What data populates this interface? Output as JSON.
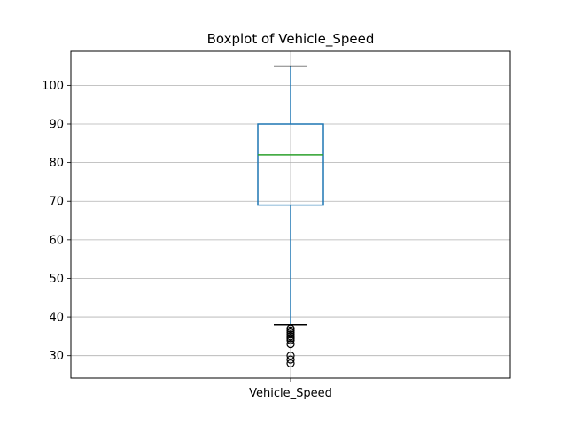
{
  "chart_data": {
    "type": "boxplot",
    "title": "Boxplot of Vehicle_Speed",
    "xlabel": "",
    "ylabel": "",
    "categories": [
      "Vehicle_Speed"
    ],
    "ylim": [
      24.2,
      108.8
    ],
    "yticks": [
      30,
      40,
      50,
      60,
      70,
      80,
      90,
      100
    ],
    "grid": true,
    "box": {
      "whisker_low": 38,
      "q1": 69,
      "median": 82,
      "q3": 90,
      "whisker_high": 105
    },
    "outliers": [
      37,
      36.5,
      36,
      35.5,
      35,
      34.5,
      34,
      33,
      30,
      29,
      28
    ],
    "colors": {
      "box": "#1f77b4",
      "median": "#2ca02c",
      "caps": "#000000",
      "outlier": "#000000",
      "grid": "#b0b0b0"
    }
  }
}
